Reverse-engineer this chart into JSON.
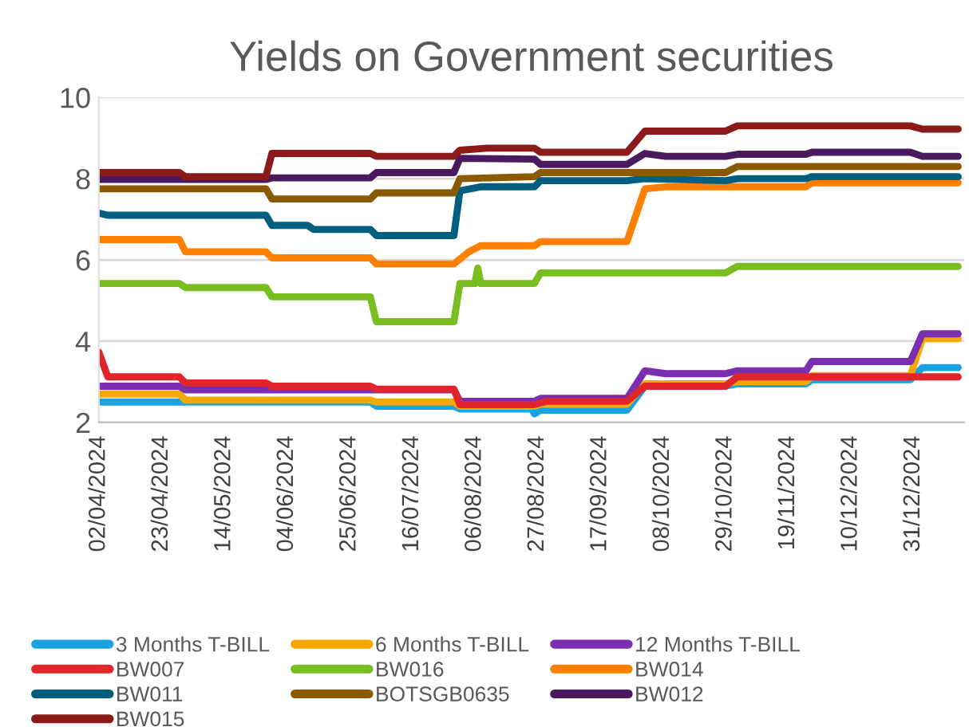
{
  "chart_data": {
    "type": "line",
    "title": "Yields on Government securities",
    "xlim": [
      "2024-04-02",
      "2025-01-17"
    ],
    "xticks": [
      {
        "value": "2024-04-02",
        "label": "02/04/2024"
      },
      {
        "value": "2024-04-23",
        "label": "23/04/2024"
      },
      {
        "value": "2024-05-14",
        "label": "14/05/2024"
      },
      {
        "value": "2024-06-04",
        "label": "04/06/2024"
      },
      {
        "value": "2024-06-25",
        "label": "25/06/2024"
      },
      {
        "value": "2024-07-16",
        "label": "16/07/2024"
      },
      {
        "value": "2024-08-06",
        "label": "06/08/2024"
      },
      {
        "value": "2024-08-27",
        "label": "27/08/2024"
      },
      {
        "value": "2024-09-17",
        "label": "17/09/2024"
      },
      {
        "value": "2024-10-08",
        "label": "08/10/2024"
      },
      {
        "value": "2024-10-29",
        "label": "29/10/2024"
      },
      {
        "value": "2024-11-19",
        "label": "19/11/2024"
      },
      {
        "value": "2024-12-10",
        "label": "10/12/2024"
      },
      {
        "value": "2024-12-31",
        "label": "31/12/2024"
      }
    ],
    "ylim": [
      2,
      10
    ],
    "yticks": [
      2,
      4,
      6,
      8,
      10
    ],
    "grid": "y",
    "legend": "bottom",
    "line_style": "solid",
    "series": [
      {
        "name": "3 Months T-BILL",
        "color": "#1aa3e0",
        "x": [
          "2024-04-02",
          "2024-07-02",
          "2024-07-04",
          "2024-07-30",
          "2024-08-01",
          "2024-08-25",
          "2024-08-26",
          "2024-08-28",
          "2024-09-26",
          "2024-10-02",
          "2024-10-29",
          "2024-11-02",
          "2024-11-25",
          "2024-11-27",
          "2024-12-30",
          "2025-01-03",
          "2025-01-15"
        ],
        "values": [
          2.5,
          2.5,
          2.4,
          2.4,
          2.33,
          2.33,
          2.21,
          2.3,
          2.3,
          2.89,
          2.89,
          2.95,
          2.95,
          3.05,
          3.05,
          3.35,
          3.35
        ]
      },
      {
        "name": "6 Months T-BILL",
        "color": "#f5a800",
        "x": [
          "2024-04-02",
          "2024-04-29",
          "2024-05-01",
          "2024-07-02",
          "2024-07-04",
          "2024-07-30",
          "2024-08-01",
          "2024-08-26",
          "2024-08-28",
          "2024-09-26",
          "2024-10-02",
          "2024-10-29",
          "2024-11-02",
          "2024-11-25",
          "2024-11-27",
          "2024-12-30",
          "2025-01-03",
          "2025-01-15"
        ],
        "values": [
          2.7,
          2.7,
          2.55,
          2.55,
          2.5,
          2.5,
          2.4,
          2.4,
          2.45,
          2.45,
          2.95,
          2.95,
          3.0,
          3.0,
          3.15,
          3.15,
          4.06,
          4.06
        ]
      },
      {
        "name": "12 Months T-BILL",
        "color": "#7b2fb0",
        "x": [
          "2024-04-02",
          "2024-04-29",
          "2024-05-01",
          "2024-07-30",
          "2024-08-01",
          "2024-08-26",
          "2024-08-28",
          "2024-09-26",
          "2024-10-02",
          "2024-10-09",
          "2024-10-29",
          "2024-11-02",
          "2024-11-25",
          "2024-11-27",
          "2024-12-30",
          "2025-01-03",
          "2025-01-15"
        ],
        "values": [
          2.89,
          2.89,
          2.8,
          2.8,
          2.52,
          2.52,
          2.59,
          2.59,
          3.27,
          3.2,
          3.2,
          3.27,
          3.27,
          3.5,
          3.5,
          4.18,
          4.18
        ]
      },
      {
        "name": "BW007",
        "color": "#e0262b",
        "x": [
          "2024-04-02",
          "2024-04-05",
          "2024-04-29",
          "2024-05-01",
          "2024-05-28",
          "2024-05-30",
          "2024-07-02",
          "2024-07-04",
          "2024-07-30",
          "2024-08-01",
          "2024-08-26",
          "2024-08-30",
          "2024-09-26",
          "2024-10-02",
          "2024-10-29",
          "2024-11-02",
          "2025-01-15"
        ],
        "values": [
          3.73,
          3.12,
          3.12,
          2.97,
          2.97,
          2.89,
          2.89,
          2.82,
          2.82,
          2.44,
          2.44,
          2.52,
          2.52,
          2.89,
          2.89,
          3.12,
          3.12
        ]
      },
      {
        "name": "BW016",
        "color": "#78be20",
        "x": [
          "2024-04-02",
          "2024-04-29",
          "2024-05-01",
          "2024-05-28",
          "2024-05-30",
          "2024-07-02",
          "2024-07-04",
          "2024-07-30",
          "2024-08-01",
          "2024-08-06",
          "2024-08-07",
          "2024-08-08",
          "2024-08-26",
          "2024-08-28",
          "2024-10-29",
          "2024-11-02",
          "2025-01-15"
        ],
        "values": [
          5.42,
          5.42,
          5.32,
          5.32,
          5.09,
          5.09,
          4.48,
          4.48,
          5.42,
          5.42,
          5.8,
          5.42,
          5.42,
          5.68,
          5.68,
          5.84,
          5.84
        ]
      },
      {
        "name": "BW014",
        "color": "#ff8000",
        "x": [
          "2024-04-02",
          "2024-04-29",
          "2024-05-01",
          "2024-05-28",
          "2024-05-30",
          "2024-07-02",
          "2024-07-04",
          "2024-07-30",
          "2024-08-04",
          "2024-08-08",
          "2024-08-26",
          "2024-08-28",
          "2024-09-26",
          "2024-10-02",
          "2024-10-09",
          "2024-11-25",
          "2024-11-27",
          "2025-01-15"
        ],
        "values": [
          6.5,
          6.5,
          6.2,
          6.2,
          6.05,
          6.05,
          5.9,
          5.9,
          6.2,
          6.35,
          6.35,
          6.45,
          6.45,
          7.75,
          7.8,
          7.8,
          7.9,
          7.9
        ]
      },
      {
        "name": "BW011",
        "color": "#005f7f",
        "x": [
          "2024-04-02",
          "2024-04-05",
          "2024-05-28",
          "2024-05-30",
          "2024-06-11",
          "2024-06-13",
          "2024-07-02",
          "2024-07-04",
          "2024-07-30",
          "2024-08-01",
          "2024-08-08",
          "2024-08-26",
          "2024-08-28",
          "2024-09-26",
          "2024-10-02",
          "2024-10-29",
          "2024-11-02",
          "2024-11-25",
          "2024-11-27",
          "2025-01-15"
        ],
        "values": [
          7.15,
          7.1,
          7.1,
          6.85,
          6.85,
          6.75,
          6.75,
          6.6,
          6.6,
          7.7,
          7.8,
          7.8,
          7.95,
          7.95,
          8.0,
          7.95,
          8.0,
          8.0,
          8.05,
          8.05
        ]
      },
      {
        "name": "BOTSGB0635",
        "color": "#8b5a00",
        "x": [
          "2024-04-02",
          "2024-05-28",
          "2024-05-30",
          "2024-07-02",
          "2024-07-04",
          "2024-07-30",
          "2024-08-01",
          "2024-08-26",
          "2024-08-28",
          "2024-10-29",
          "2024-11-02",
          "2025-01-15"
        ],
        "values": [
          7.75,
          7.75,
          7.5,
          7.5,
          7.65,
          7.65,
          8.0,
          8.05,
          8.15,
          8.15,
          8.3,
          8.3
        ]
      },
      {
        "name": "BW012",
        "color": "#4b1a5e",
        "x": [
          "2024-04-02",
          "2024-05-28",
          "2024-05-30",
          "2024-07-02",
          "2024-07-04",
          "2024-07-30",
          "2024-08-01",
          "2024-08-26",
          "2024-08-28",
          "2024-09-26",
          "2024-10-02",
          "2024-10-09",
          "2024-10-29",
          "2024-11-02",
          "2024-11-25",
          "2024-11-27",
          "2024-12-30",
          "2025-01-03",
          "2025-01-15"
        ],
        "values": [
          7.98,
          7.98,
          8.02,
          8.02,
          8.15,
          8.15,
          8.5,
          8.48,
          8.35,
          8.35,
          8.62,
          8.55,
          8.55,
          8.6,
          8.6,
          8.65,
          8.65,
          8.55,
          8.55
        ]
      },
      {
        "name": "BW015",
        "color": "#8b1a1a",
        "x": [
          "2024-04-02",
          "2024-04-29",
          "2024-05-01",
          "2024-05-28",
          "2024-05-30",
          "2024-07-02",
          "2024-07-04",
          "2024-07-30",
          "2024-08-01",
          "2024-08-10",
          "2024-08-26",
          "2024-08-28",
          "2024-09-26",
          "2024-10-02",
          "2024-10-29",
          "2024-11-02",
          "2024-12-30",
          "2025-01-03",
          "2025-01-15"
        ],
        "values": [
          8.15,
          8.15,
          8.05,
          8.05,
          8.62,
          8.62,
          8.55,
          8.55,
          8.7,
          8.75,
          8.75,
          8.65,
          8.65,
          9.17,
          9.17,
          9.3,
          9.3,
          9.22,
          9.22
        ]
      }
    ]
  }
}
